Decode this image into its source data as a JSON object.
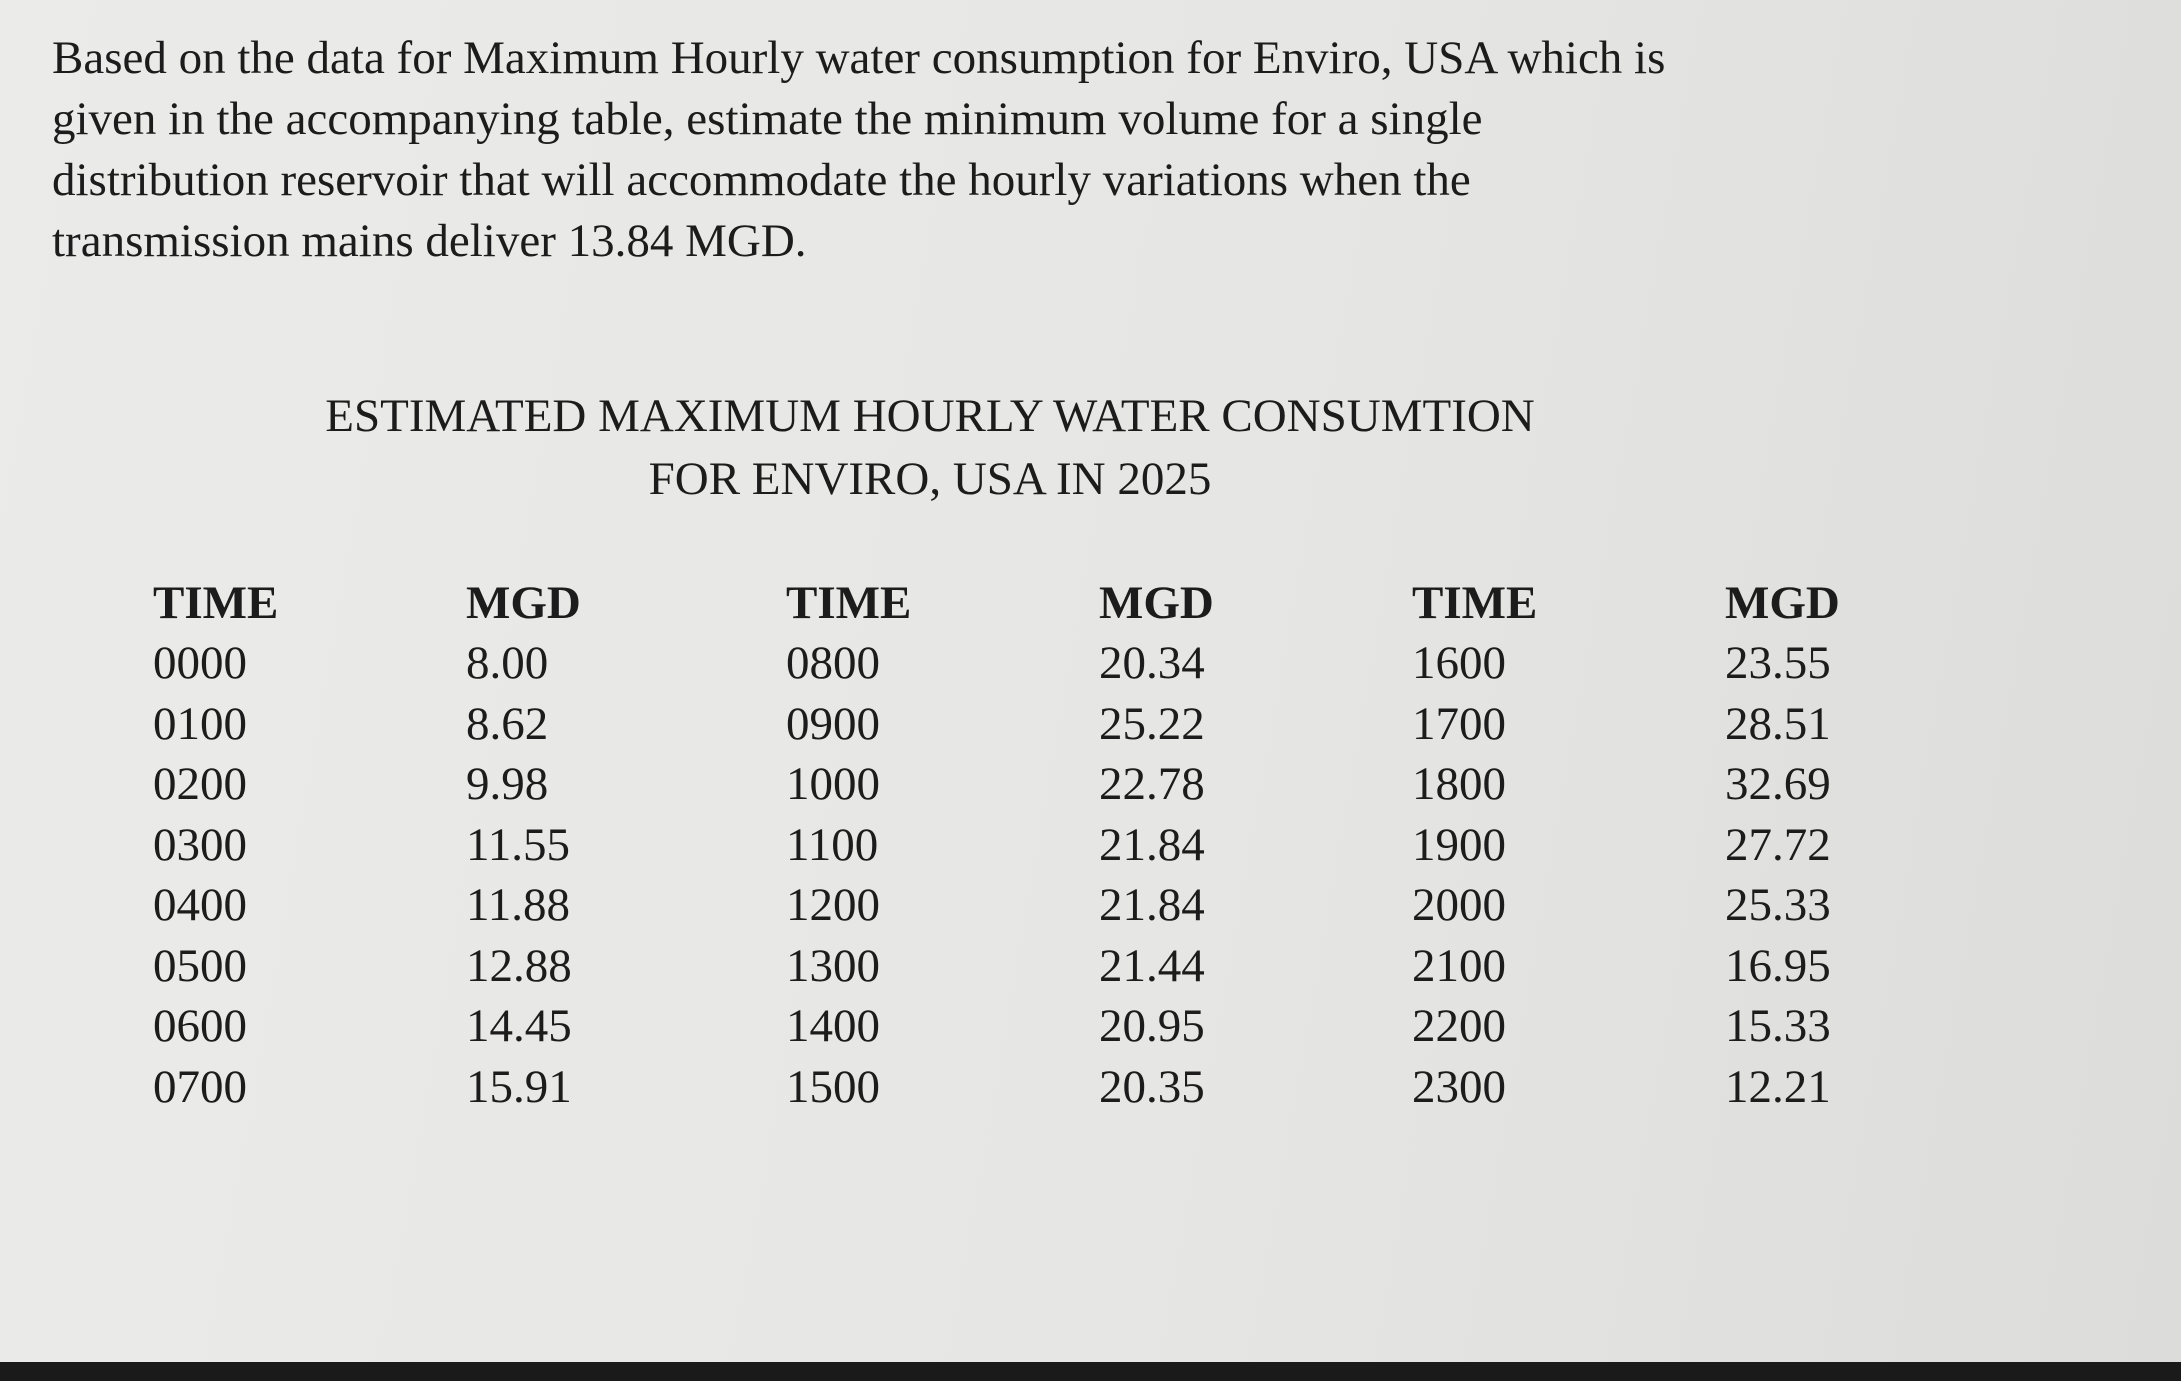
{
  "problem": {
    "lines": [
      "Based on the data for Maximum Hourly water consumption for Enviro, USA which is",
      "given in the accompanying table, estimate the minimum volume for a single",
      "distribution reservoir that will accommodate the hourly variations when the",
      "transmission mains deliver 13.84 MGD."
    ]
  },
  "table": {
    "title": [
      "ESTIMATED MAXIMUM HOURLY WATER CONSUMTION",
      "FOR ENVIRO, USA IN 2025"
    ],
    "header": [
      "TIME",
      "MGD",
      "TIME",
      "MGD",
      "TIME",
      "MGD"
    ],
    "rows": [
      [
        "0000",
        "8.00",
        "0800",
        "20.34",
        "1600",
        "23.55"
      ],
      [
        "0100",
        "8.62",
        "0900",
        "25.22",
        "1700",
        "28.51"
      ],
      [
        "0200",
        "9.98",
        "1000",
        "22.78",
        "1800",
        "32.69"
      ],
      [
        "0300",
        "11.55",
        "1100",
        "21.84",
        "1900",
        "27.72"
      ],
      [
        "0400",
        "11.88",
        "1200",
        "21.84",
        "2000",
        "25.33"
      ],
      [
        "0500",
        "12.88",
        "1300",
        "21.44",
        "2100",
        "16.95"
      ],
      [
        "0600",
        "14.45",
        "1400",
        "20.95",
        "2200",
        "15.33"
      ],
      [
        "0700",
        "15.91",
        "1500",
        "20.35",
        "2300",
        "12.21"
      ]
    ]
  }
}
